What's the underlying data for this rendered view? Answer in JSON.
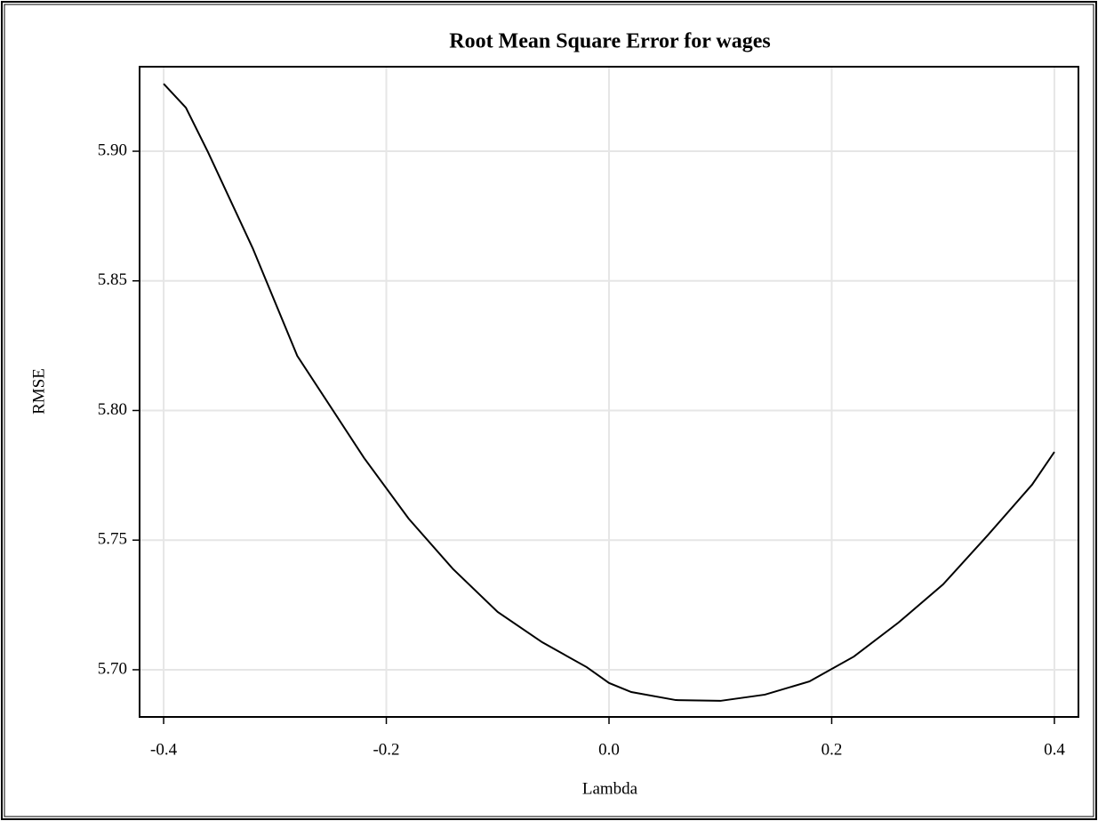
{
  "chart_data": {
    "type": "line",
    "title": "Root Mean Square Error for wages",
    "x_label": "Lambda",
    "y_label": "RMSE",
    "x": [
      -0.4,
      -0.38,
      -0.36,
      -0.32,
      -0.28,
      -0.22,
      -0.18,
      -0.14,
      -0.1,
      -0.06,
      -0.02,
      0.0,
      0.02,
      0.06,
      0.1,
      0.14,
      0.18,
      0.22,
      0.26,
      0.3,
      0.34,
      0.38,
      0.4
    ],
    "series": [
      {
        "name": "RMSE",
        "color": "#000000",
        "values": [
          5.926,
          5.9168,
          5.8995,
          5.8626,
          5.8211,
          5.7817,
          5.7583,
          5.7388,
          5.7223,
          5.7106,
          5.701,
          5.6949,
          5.6914,
          5.6883,
          5.688,
          5.6904,
          5.6955,
          5.7051,
          5.7182,
          5.7329,
          5.7518,
          5.7714,
          5.784
        ]
      }
    ],
    "xlim": [
      -0.4216,
      0.4216
    ],
    "ylim": [
      5.6818,
      5.9326
    ],
    "xticks": [
      -0.4,
      -0.2,
      {
        "value": 0,
        "label": "0.0"
      },
      0.2,
      0.4
    ],
    "yticks": [
      {
        "value": 5.7,
        "label": "5.70"
      },
      {
        "value": 5.75,
        "label": "5.75"
      },
      {
        "value": 5.8,
        "label": "5.80"
      },
      {
        "value": 5.85,
        "label": "5.85"
      },
      {
        "value": 5.9,
        "label": "5.90"
      }
    ],
    "grid": true
  }
}
